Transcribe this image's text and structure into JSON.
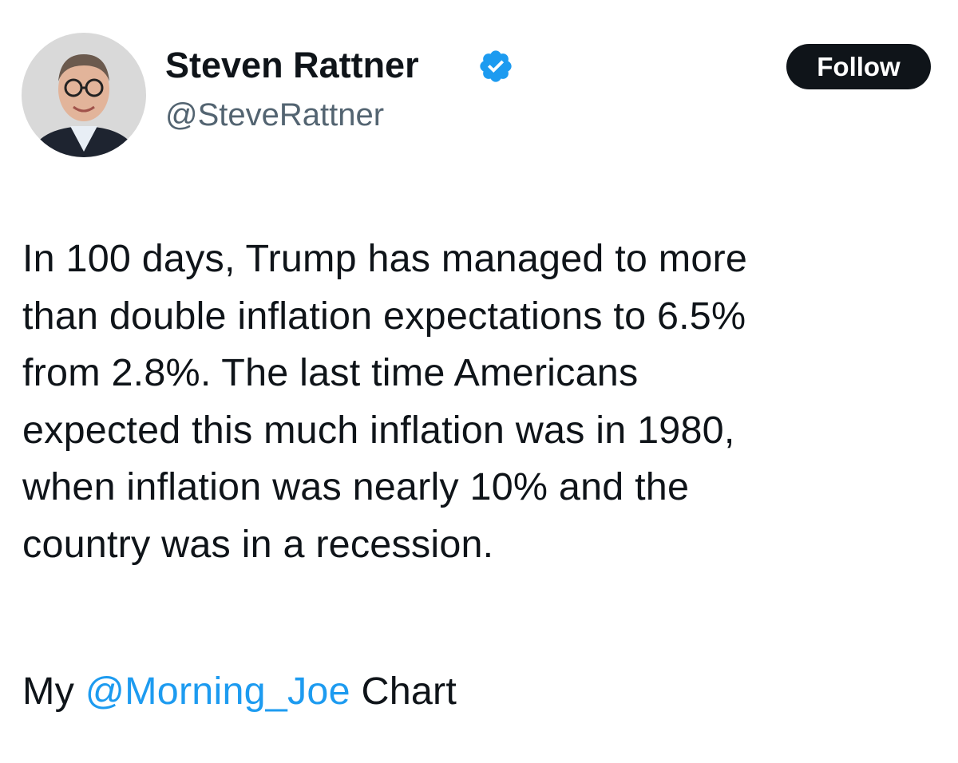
{
  "author": {
    "name": "Steven Rattner",
    "handle": "@SteveRattner"
  },
  "follow_button": "Follow",
  "body": {
    "lines": [
      "In 100 days, Trump has managed to more",
      "than double inflation expectations to 6.5%",
      "from 2.8%. The last time Americans",
      "expected this much inflation was in 1980,",
      "when inflation was nearly 10% and the",
      "country was in a recession."
    ]
  },
  "footer": {
    "prefix": "My",
    "mention": "@Morning_Joe",
    "suffix": "Chart"
  }
}
